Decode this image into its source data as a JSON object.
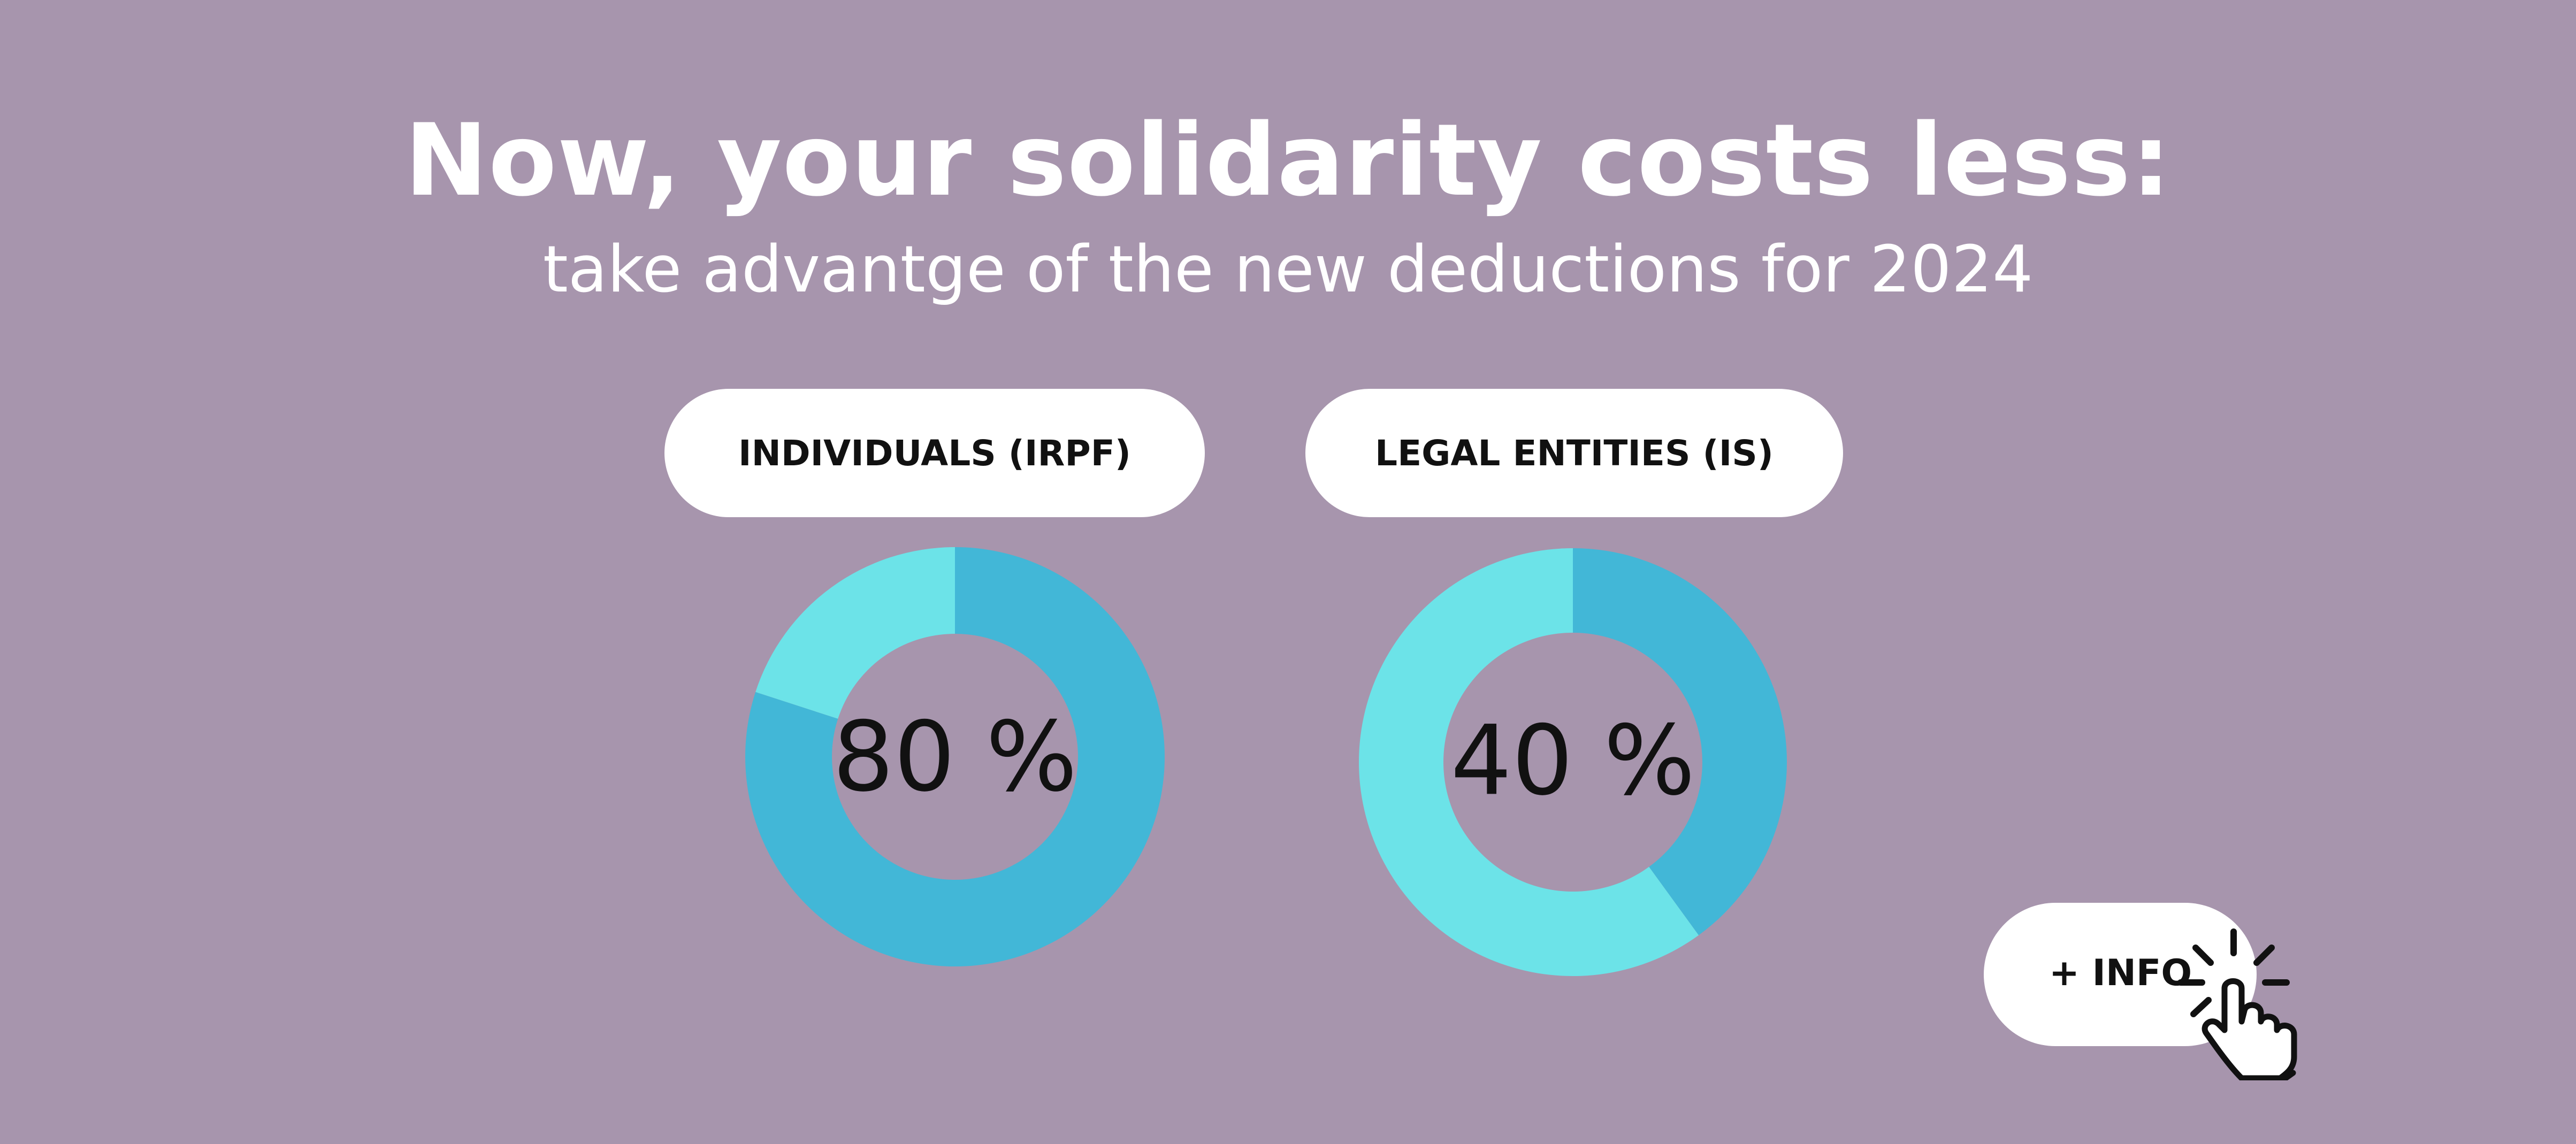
{
  "header": {
    "title": "Now, your solidarity costs less:",
    "subtitle": "take advantge of the new deductions  for 2024"
  },
  "colors": {
    "background": "#a795ad",
    "primary_segment": "#42b7d7",
    "secondary_segment": "#6ce3e8",
    "text_dark": "#111111"
  },
  "chart_data": [
    {
      "type": "pie",
      "title": "INDIVIDUALS (IRPF)",
      "center_label": "80 %",
      "slices": [
        {
          "label": "",
          "value": 80,
          "color": "#42b7d7"
        },
        {
          "label": "",
          "value": 20,
          "color": "#6ce3e8"
        }
      ]
    },
    {
      "type": "pie",
      "title": "LEGAL ENTITIES (IS)",
      "center_label": "40 %",
      "slices": [
        {
          "label": "",
          "value": 40,
          "color": "#42b7d7"
        },
        {
          "label": "",
          "value": 60,
          "color": "#6ce3e8"
        }
      ]
    }
  ],
  "info_button": {
    "label": "+ INFO",
    "icon": "pointer-hand-click-icon"
  }
}
